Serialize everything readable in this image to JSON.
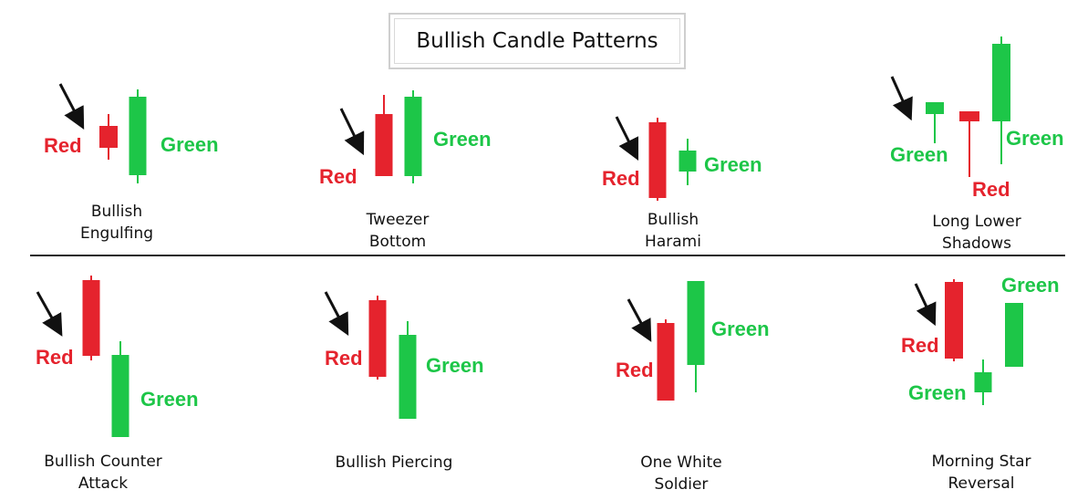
{
  "title": "Bullish Candle Patterns",
  "colors": {
    "red": "#e5232d",
    "green": "#1dc648",
    "arrow": "#111111"
  },
  "icons": [
    "arrow-down-right-icon"
  ],
  "patterns": [
    {
      "name_line1": "Bullish",
      "name_line2": "Engulfing",
      "labels": {
        "red_1": "Red",
        "green_1": "Green"
      },
      "candles": [
        "red",
        "green"
      ]
    },
    {
      "name_line1": "Tweezer",
      "name_line2": "Bottom",
      "labels": {
        "red_1": "Red",
        "green_1": "Green"
      },
      "candles": [
        "red",
        "green"
      ]
    },
    {
      "name_line1": "Bullish",
      "name_line2": "Harami",
      "labels": {
        "red_1": "Red",
        "green_1": "Green"
      },
      "candles": [
        "red",
        "green"
      ]
    },
    {
      "name_line1": "Long Lower",
      "name_line2": "Shadows",
      "labels": {
        "green_1": "Green",
        "red_1": "Red",
        "green_2": "Green"
      },
      "candles": [
        "green",
        "red",
        "green"
      ]
    },
    {
      "name_line1": "Bullish Counter",
      "name_line2": "Attack",
      "labels": {
        "red_1": "Red",
        "green_1": "Green"
      },
      "candles": [
        "red",
        "green"
      ]
    },
    {
      "name_line1": "Bullish Piercing",
      "name_line2": "",
      "labels": {
        "red_1": "Red",
        "green_1": "Green"
      },
      "candles": [
        "red",
        "green"
      ]
    },
    {
      "name_line1": "One White",
      "name_line2": "Soldier",
      "labels": {
        "red_1": "Red",
        "green_1": "Green"
      },
      "candles": [
        "red",
        "green"
      ]
    },
    {
      "name_line1": "Morning Star",
      "name_line2": "Reversal",
      "labels": {
        "red_1": "Red",
        "green_1": "Green",
        "green_2": "Green"
      },
      "candles": [
        "red",
        "green",
        "green"
      ]
    }
  ]
}
